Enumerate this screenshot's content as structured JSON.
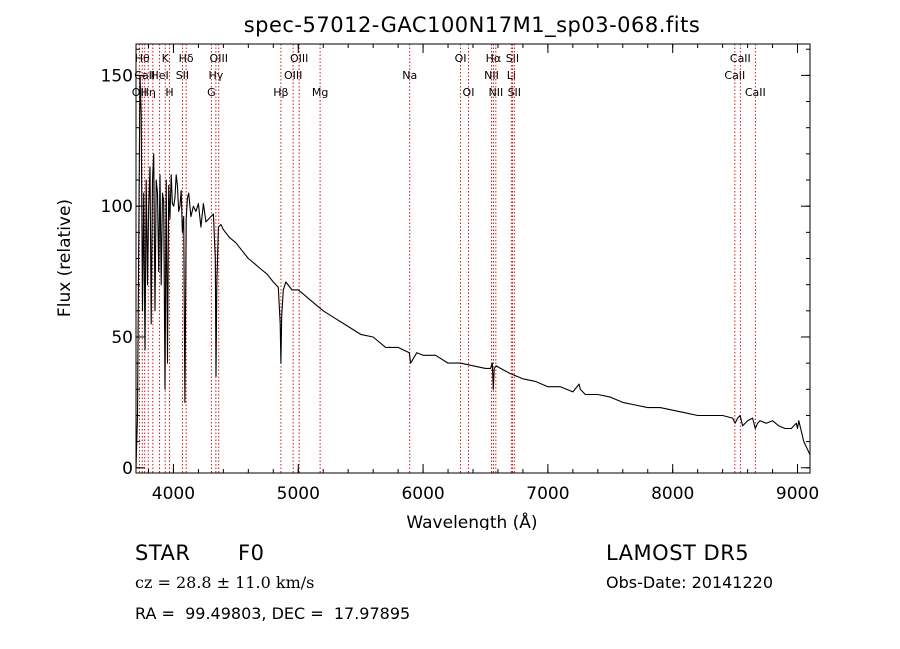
{
  "chart_data": {
    "type": "line",
    "title": "spec-57012-GAC100N17M1_sp03-068.fits",
    "xlabel": "Wavelength (Å)",
    "ylabel": "Flux (relative)",
    "xlim": [
      3700,
      9100
    ],
    "ylim": [
      -2,
      162
    ],
    "x_ticks": [
      4000,
      5000,
      6000,
      7000,
      8000,
      9000
    ],
    "y_ticks": [
      0,
      50,
      100,
      150
    ],
    "grid": false,
    "line_color": "#000000",
    "marker_color": "#cc0000",
    "series": [
      {
        "x": [
          3700,
          3712,
          3722,
          3732,
          3742,
          3752,
          3762,
          3772,
          3782,
          3792,
          3802,
          3812,
          3822,
          3832,
          3842,
          3852,
          3862,
          3872,
          3882,
          3892,
          3902,
          3912,
          3922,
          3932,
          3942,
          3952,
          3962,
          3972,
          3982,
          3992,
          4002,
          4012,
          4022,
          4032,
          4042,
          4052,
          4062,
          4072,
          4082,
          4092,
          4102,
          4112,
          4122,
          4140,
          4160,
          4180,
          4200,
          4220,
          4240,
          4260,
          4280,
          4300,
          4320,
          4335,
          4341,
          4347,
          4360,
          4380,
          4400,
          4450,
          4500,
          4550,
          4600,
          4650,
          4700,
          4750,
          4800,
          4840,
          4855,
          4861,
          4867,
          4880,
          4900,
          4950,
          5000,
          5050,
          5100,
          5150,
          5200,
          5300,
          5400,
          5500,
          5600,
          5700,
          5800,
          5890,
          5900,
          5950,
          6000,
          6100,
          6200,
          6300,
          6400,
          6500,
          6540,
          6555,
          6563,
          6570,
          6585,
          6620,
          6700,
          6800,
          6900,
          7000,
          7100,
          7200,
          7250,
          7260,
          7300,
          7400,
          7500,
          7600,
          7700,
          7800,
          7900,
          8000,
          8100,
          8200,
          8300,
          8400,
          8480,
          8500,
          8520,
          8540,
          8560,
          8600,
          8640,
          8662,
          8680,
          8700,
          8750,
          8800,
          8850,
          8900,
          8950,
          8990,
          9000,
          9010,
          9050,
          9100
        ],
        "y": [
          0,
          20,
          85,
          150,
          135,
          60,
          105,
          45,
          110,
          70,
          100,
          115,
          55,
          110,
          120,
          60,
          110,
          105,
          75,
          112,
          70,
          105,
          102,
          30,
          110,
          40,
          108,
          95,
          112,
          101,
          100,
          103,
          112,
          108,
          98,
          100,
          106,
          90,
          96,
          25,
          95,
          103,
          105,
          96,
          100,
          98,
          101,
          92,
          101,
          94,
          95,
          96,
          97,
          80,
          35,
          70,
          92,
          93,
          91,
          88,
          86,
          83,
          80,
          78,
          76,
          74,
          71,
          69,
          55,
          40,
          58,
          68,
          71,
          68,
          68,
          66,
          64,
          62,
          60,
          57,
          54,
          51,
          50,
          46,
          46,
          44,
          40,
          44,
          43,
          43,
          40,
          40,
          39,
          38,
          38,
          40,
          30,
          38,
          39,
          38,
          36,
          34,
          33,
          31,
          31,
          29,
          32,
          30,
          28,
          28,
          27,
          25,
          24,
          23,
          23,
          22,
          21,
          20,
          20,
          20,
          19,
          17,
          19,
          20,
          16,
          18,
          19,
          15,
          17,
          18,
          17,
          18,
          16,
          15,
          15,
          17,
          15,
          18,
          10,
          5
        ]
      }
    ],
    "markers": [
      {
        "x": 3727,
        "label": "OII",
        "row": 2
      },
      {
        "x": 3750,
        "label": "Hθ",
        "row": 0
      },
      {
        "x": 3770,
        "label": "CaII",
        "row": 1
      },
      {
        "x": 3798,
        "label": "Hη",
        "row": 2
      },
      {
        "x": 3835,
        "label": "",
        "row": -1
      },
      {
        "x": 3889,
        "label": "HeI",
        "row": 1
      },
      {
        "x": 3934,
        "label": "K",
        "row": 0
      },
      {
        "x": 3969,
        "label": "H",
        "row": 2
      },
      {
        "x": 4072,
        "label": "SII",
        "row": 1
      },
      {
        "x": 4102,
        "label": "Hδ",
        "row": 0
      },
      {
        "x": 4304,
        "label": "G",
        "row": 2
      },
      {
        "x": 4340,
        "label": "Hγ",
        "row": 1
      },
      {
        "x": 4363,
        "label": "OIII",
        "row": 0
      },
      {
        "x": 4861,
        "label": "Hβ",
        "row": 2
      },
      {
        "x": 4959,
        "label": "OIII",
        "row": 1
      },
      {
        "x": 5007,
        "label": "OIII",
        "row": 0
      },
      {
        "x": 5175,
        "label": "Mg",
        "row": 2
      },
      {
        "x": 5893,
        "label": "Na",
        "row": 1
      },
      {
        "x": 6300,
        "label": "OI",
        "row": 0
      },
      {
        "x": 6364,
        "label": "OI",
        "row": 2
      },
      {
        "x": 6548,
        "label": "NII",
        "row": 1
      },
      {
        "x": 6563,
        "label": "Hα",
        "row": 0
      },
      {
        "x": 6583,
        "label": "NII",
        "row": 2
      },
      {
        "x": 6707,
        "label": "Li",
        "row": 1
      },
      {
        "x": 6716,
        "label": "SII",
        "row": 0
      },
      {
        "x": 6731,
        "label": "SII",
        "row": 2
      },
      {
        "x": 8498,
        "label": "CaII",
        "row": 1
      },
      {
        "x": 8542,
        "label": "CaII",
        "row": 0
      },
      {
        "x": 8662,
        "label": "CaII",
        "row": 2
      }
    ]
  },
  "info": {
    "class_label": "STAR",
    "subclass": "F0",
    "survey": "LAMOST DR5",
    "cz": "cz = 28.8 ± 11.0 km/s",
    "obs_date": "Obs-Date: 20141220",
    "coords": "RA =  99.49803, DEC =  17.97895"
  }
}
